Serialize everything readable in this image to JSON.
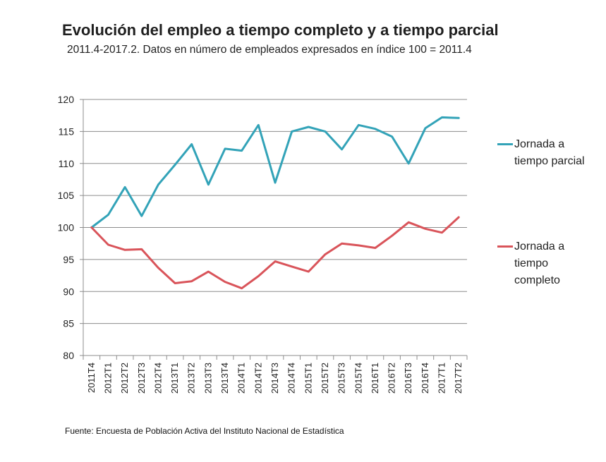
{
  "title": "Evolución del empleo a tiempo completo y a tiempo parcial",
  "subtitle": "2011.4-2017.2. Datos en número de empleados expresados en índice 100 = 2011.4",
  "source": "Fuente: Encuesta de Población Activa del Instituto Nacional de Estadística",
  "chart_data": {
    "type": "line",
    "categories": [
      "2011T4",
      "2012T1",
      "2012T2",
      "2012T3",
      "2012T4",
      "2013T1",
      "2013T2",
      "2013T3",
      "2013T4",
      "2014T1",
      "2014T2",
      "2014T3",
      "2014T4",
      "2015T1",
      "2015T2",
      "2015T3",
      "2015T4",
      "2016T1",
      "2016T2",
      "2016T3",
      "2016T4",
      "2017T1",
      "2017T2"
    ],
    "ylim": [
      80,
      120
    ],
    "yticks": [
      "80",
      "85",
      "90",
      "95",
      "100",
      "105",
      "110",
      "115",
      "120"
    ],
    "grid": true,
    "legend_position": "right",
    "series": [
      {
        "name": "Jornada a tiempo parcial",
        "color": "#33a3b8",
        "values": [
          100,
          102,
          106.3,
          101.8,
          106.7,
          109.8,
          113,
          106.7,
          112.3,
          112,
          116,
          107,
          115,
          115.7,
          115,
          112.2,
          116,
          115.4,
          114.2,
          110,
          115.5,
          117.2,
          117.1
        ]
      },
      {
        "name": "Jornada a tiempo completo",
        "color": "#d9545a",
        "values": [
          100,
          97.3,
          96.5,
          96.6,
          93.7,
          91.3,
          91.6,
          93.1,
          91.5,
          90.5,
          92.4,
          94.7,
          93.9,
          93.1,
          95.8,
          97.5,
          97.2,
          96.8,
          98.7,
          100.8,
          99.8,
          99.2,
          101.6
        ]
      }
    ]
  }
}
